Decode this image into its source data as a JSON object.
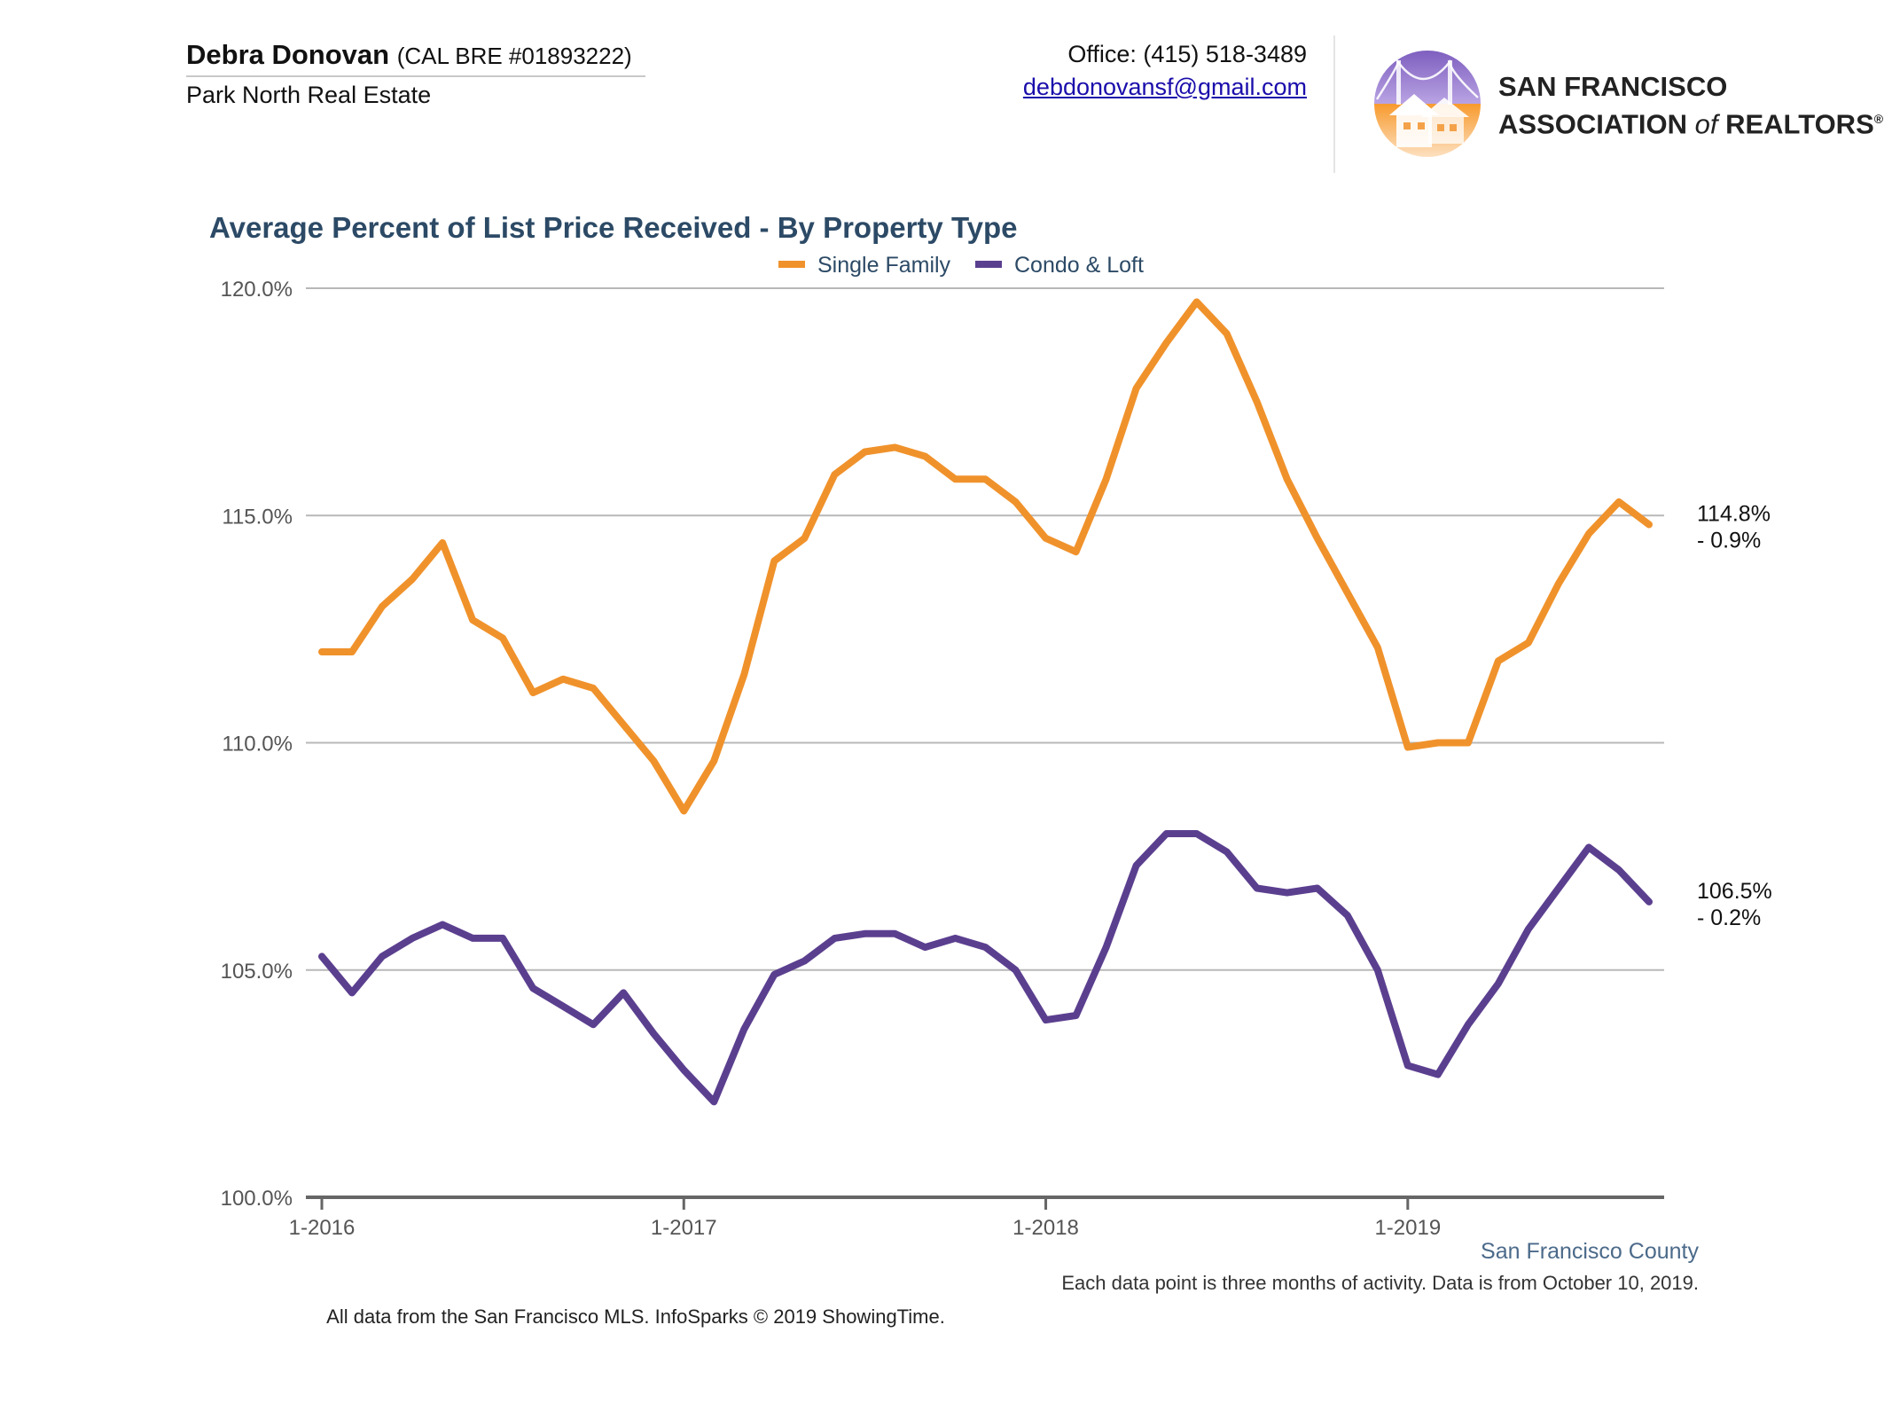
{
  "header": {
    "agent_name": "Debra Donovan",
    "agent_license": "(CAL BRE #01893222)",
    "agent_company": "Park North Real Estate",
    "office_phone": "Office: (415) 518-3489",
    "email": "debdonovansf@gmail.com",
    "association_line1": "SAN FRANCISCO",
    "association_line2_a": "ASSOCIATION",
    "association_line2_of": "of",
    "association_line2_b": "REALTORS",
    "association_mark": "®"
  },
  "footer": {
    "region": "San Francisco County",
    "note": "Each data point is three months of activity. Data is from October 10, 2019.",
    "source": "All data from the San Francisco MLS. InfoSparks © 2019 ShowingTime."
  },
  "colors": {
    "single_family": "#f0922b",
    "condo_loft": "#5b3f8f",
    "title": "#2c4a66",
    "grid": "#b8b8b8",
    "axis": "#666666"
  },
  "icons": {
    "logo": "golden-gate-house-logo-icon"
  },
  "chart_data": {
    "type": "line",
    "title": "Average Percent of List Price Received - By Property Type",
    "xlabel": "",
    "ylabel": "",
    "ylim": [
      100,
      120
    ],
    "yticks": [
      "120.0%",
      "115.0%",
      "110.0%",
      "105.0%",
      "100.0%"
    ],
    "ytick_values": [
      120,
      115,
      110,
      105,
      100
    ],
    "xticks": [
      "1-2016",
      "1-2017",
      "1-2018",
      "1-2019"
    ],
    "legend_position": "top-center",
    "grid": true,
    "x": [
      "1-2016",
      "2-2016",
      "3-2016",
      "4-2016",
      "5-2016",
      "6-2016",
      "7-2016",
      "8-2016",
      "9-2016",
      "10-2016",
      "11-2016",
      "12-2016",
      "1-2017",
      "2-2017",
      "3-2017",
      "4-2017",
      "5-2017",
      "6-2017",
      "7-2017",
      "8-2017",
      "9-2017",
      "10-2017",
      "11-2017",
      "12-2017",
      "1-2018",
      "2-2018",
      "3-2018",
      "4-2018",
      "5-2018",
      "6-2018",
      "7-2018",
      "8-2018",
      "9-2018",
      "10-2018",
      "11-2018",
      "12-2018",
      "1-2019",
      "2-2019",
      "3-2019",
      "4-2019",
      "5-2019",
      "6-2019",
      "7-2019",
      "8-2019",
      "9-2019"
    ],
    "series": [
      {
        "name": "Single Family",
        "values": [
          112.0,
          112.0,
          113.0,
          113.6,
          114.4,
          112.7,
          112.3,
          111.1,
          111.4,
          111.2,
          110.4,
          109.6,
          108.5,
          109.6,
          111.5,
          114.0,
          114.5,
          115.9,
          116.4,
          116.5,
          116.3,
          115.8,
          115.8,
          115.3,
          114.5,
          114.2,
          115.8,
          117.8,
          118.8,
          119.7,
          119.0,
          117.5,
          115.8,
          114.5,
          113.3,
          112.1,
          109.9,
          110.0,
          110.0,
          111.8,
          112.2,
          113.5,
          114.6,
          115.3,
          114.8
        ],
        "end_value": "114.8%",
        "end_change": "- 0.9%"
      },
      {
        "name": "Condo & Loft",
        "values": [
          105.3,
          104.5,
          105.3,
          105.7,
          106.0,
          105.7,
          105.7,
          104.6,
          104.2,
          103.8,
          104.5,
          103.6,
          102.8,
          102.1,
          103.7,
          104.9,
          105.2,
          105.7,
          105.8,
          105.8,
          105.5,
          105.7,
          105.5,
          105.0,
          103.9,
          104.0,
          105.5,
          107.3,
          108.0,
          108.0,
          107.6,
          106.8,
          106.7,
          106.8,
          106.2,
          105.0,
          102.9,
          102.7,
          103.8,
          104.7,
          105.9,
          106.8,
          107.7,
          107.2,
          106.5
        ],
        "end_value": "106.5%",
        "end_change": "- 0.2%"
      }
    ]
  }
}
